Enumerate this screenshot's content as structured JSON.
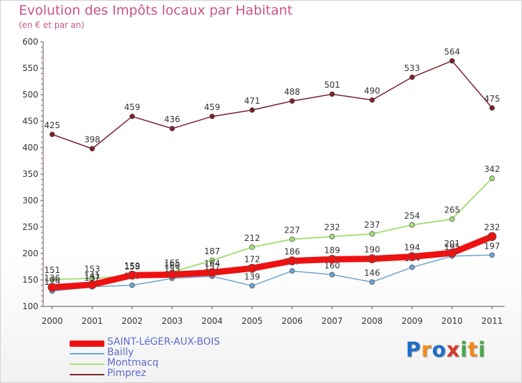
{
  "header": {
    "title": "Evolution des Impôts locaux par Habitant",
    "subtitle": "(en € et par an)"
  },
  "logo": {
    "text": "Proxiti",
    "letters": [
      {
        "ch": "P",
        "color": "#1f6fc9"
      },
      {
        "ch": "r",
        "color": "#f08c1a"
      },
      {
        "ch": "o",
        "color": "#1f6fc9"
      },
      {
        "ch": "x",
        "color": "#d93a2c"
      },
      {
        "ch": "i",
        "color": "#46a84a"
      },
      {
        "ch": "t",
        "color": "#f08c1a"
      },
      {
        "ch": "i",
        "color": "#46a84a"
      }
    ]
  },
  "chart_data": {
    "type": "line",
    "title": "Evolution des Impôts locaux par Habitant",
    "subtitle": "(en € et par an)",
    "x": [
      "2000",
      "2001",
      "2002",
      "2003",
      "2004",
      "2005",
      "2006",
      "2007",
      "2008",
      "2009",
      "2010",
      "2011"
    ],
    "ylim": [
      100,
      600
    ],
    "yticks": [
      100,
      150,
      200,
      250,
      300,
      350,
      400,
      450,
      500,
      550,
      600
    ],
    "grid": false,
    "legend_position": "bottom-left",
    "series": [
      {
        "name": "Pimprez",
        "color": "#7a1f2a",
        "line_width": 1.5,
        "marker_radius": 3.5,
        "values": [
          425,
          398,
          459,
          436,
          459,
          471,
          488,
          501,
          490,
          533,
          564,
          475
        ],
        "labels": [
          "425",
          "398",
          "459",
          "436",
          "459",
          "471",
          "488",
          "501",
          "490",
          "533",
          "564",
          "475"
        ]
      },
      {
        "name": "Montmacq",
        "color": "#a6e07a",
        "line_width": 2,
        "marker_radius": 3.5,
        "values": [
          151,
          153,
          158,
          165,
          187,
          212,
          227,
          232,
          237,
          254,
          265,
          342
        ],
        "labels": [
          "151",
          "153",
          "158",
          "165",
          "187",
          "212",
          "227",
          "232",
          "237",
          "254",
          "265",
          "342"
        ]
      },
      {
        "name": "Bailly",
        "color": "#6aa4d4",
        "line_width": 1.5,
        "marker_radius": 3.5,
        "values": [
          129,
          137,
          140,
          153,
          157,
          139,
          167,
          160,
          146,
          174,
          195,
          197
        ],
        "labels": [
          "129",
          "137",
          "140",
          "153",
          "157",
          "139",
          "167",
          "160",
          "146",
          "174",
          "195",
          "197"
        ]
      },
      {
        "name": "SAINT-LéGER-AUX-BOIS",
        "color": "#ee1111",
        "line_width": 9,
        "marker_radius": 6,
        "values": [
          136,
          141,
          159,
          160,
          164,
          172,
          186,
          189,
          190,
          194,
          201,
          232
        ],
        "labels": [
          "136",
          "141",
          "159",
          "160",
          "164",
          "172",
          "186",
          "189",
          "190",
          "194",
          "201",
          "232"
        ]
      }
    ]
  },
  "legend": {
    "items": [
      {
        "label": "SAINT-LéGER-AUX-BOIS",
        "color": "#ee1111",
        "thickness": 9
      },
      {
        "label": "Bailly",
        "color": "#6aa4d4",
        "thickness": 2
      },
      {
        "label": "Montmacq",
        "color": "#a6e07a",
        "thickness": 2
      },
      {
        "label": "Pimprez",
        "color": "#7a1f2a",
        "thickness": 2
      }
    ]
  }
}
